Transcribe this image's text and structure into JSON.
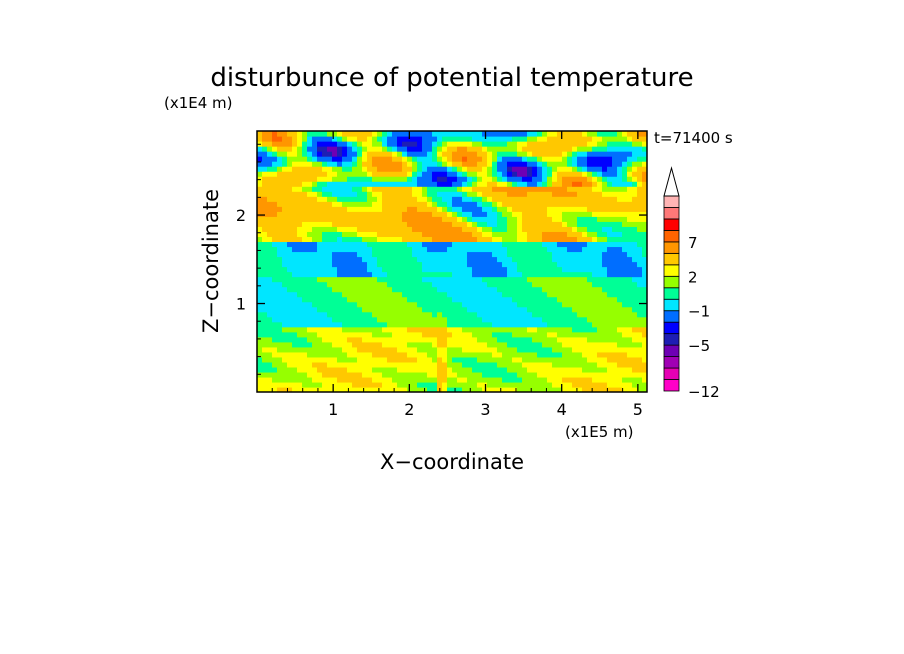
{
  "chart_data": {
    "type": "heatmap",
    "title": "disturbunce of potential temperature",
    "time_label": "t=71400 s",
    "xlabel": "X−coordinate",
    "ylabel": "Z−coordinate",
    "x_scale_label": "(x1E5 m)",
    "y_scale_label": "(x1E4 m)",
    "xlim": [
      0,
      5.12
    ],
    "ylim": [
      0,
      2.95
    ],
    "xticks": [
      {
        "value": 1,
        "label": "1"
      },
      {
        "value": 2,
        "label": "2"
      },
      {
        "value": 3,
        "label": "3"
      },
      {
        "value": 4,
        "label": "4"
      },
      {
        "value": 5,
        "label": "5"
      }
    ],
    "yticks": [
      {
        "value": 1,
        "label": "1"
      },
      {
        "value": 2,
        "label": "2"
      }
    ],
    "colorbar": {
      "levels_bottom_to_top": [
        -12,
        -10,
        -8,
        -6,
        -5,
        -4,
        -3,
        -1,
        0,
        1,
        2,
        3,
        5,
        7,
        8,
        9,
        10,
        12
      ],
      "colors_bottom_to_top": [
        "#ff00c8",
        "#e600b4",
        "#a000b4",
        "#6e00b4",
        "#1e1eb4",
        "#0000ff",
        "#006eff",
        "#00e6ff",
        "#00ff96",
        "#96ff00",
        "#ffff00",
        "#ffc800",
        "#ff9600",
        "#ff6400",
        "#ff0000",
        "#ff7878",
        "#ffb4b4"
      ],
      "labels": [
        {
          "value": -12,
          "label": "−12"
        },
        {
          "value": -5,
          "label": "−5"
        },
        {
          "value": -1,
          "label": "−1"
        },
        {
          "value": 2,
          "label": "2"
        },
        {
          "value": 7,
          "label": "7"
        }
      ],
      "extend": "max",
      "position": "right"
    },
    "field_description": [
      {
        "z_range": [
          0.0,
          0.75
        ],
        "typical_value": 2,
        "note": "yellow/orange layer near ground"
      },
      {
        "z_range": [
          0.75,
          1.3
        ],
        "typical_value": 0.5,
        "note": "green band"
      },
      {
        "z_range": [
          1.3,
          1.7
        ],
        "typical_value": -0.5,
        "note": "cyan/green band"
      },
      {
        "z_range": [
          1.7,
          2.3
        ],
        "typical_value": 3,
        "note": "warm band with cold cells"
      },
      {
        "z_range": [
          2.3,
          2.95
        ],
        "typical_value": 1,
        "note": "wave pattern, mixed warm and cold"
      }
    ],
    "mountain_x": 2.42
  }
}
